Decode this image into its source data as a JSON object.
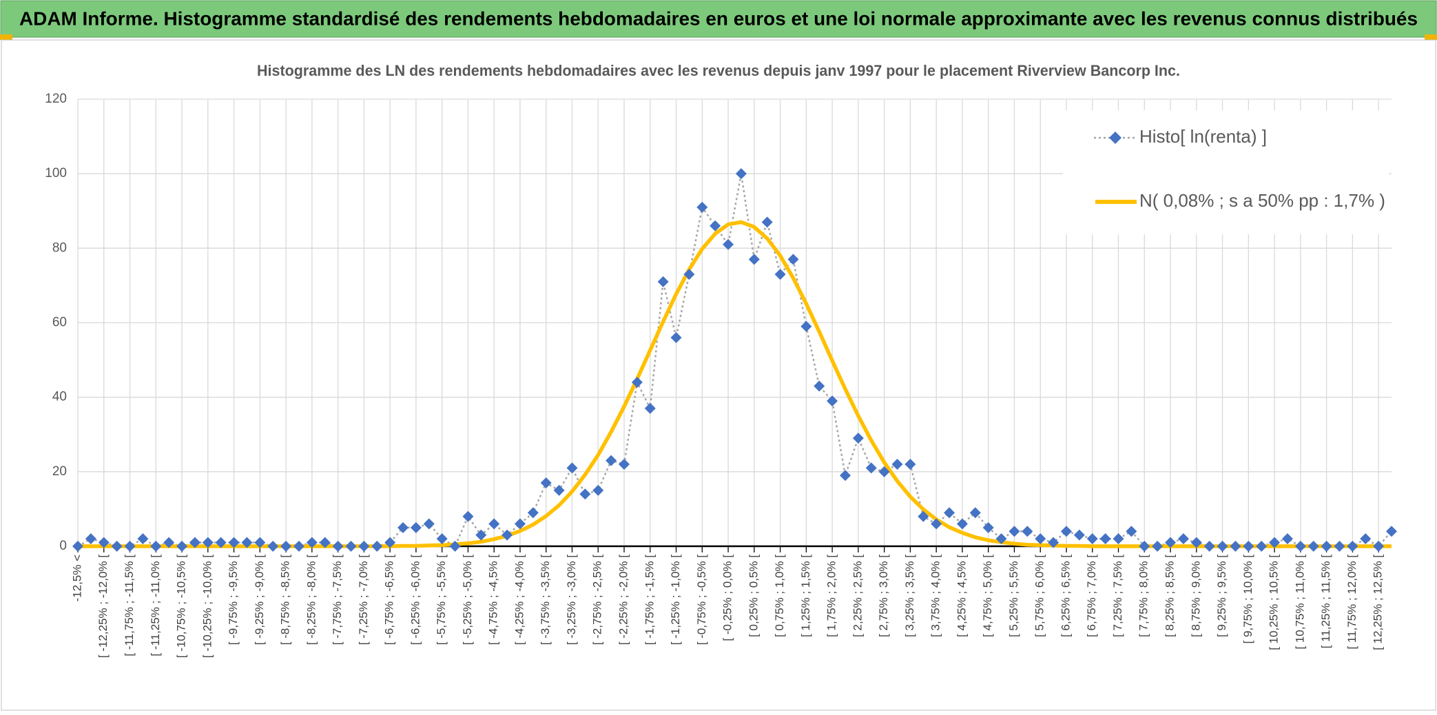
{
  "banner_title": "ADAM Informe. Histogramme standardisé des rendements hebdomadaires en euros et une loi normale approximante avec les revenus connus distribués",
  "chart_data": {
    "type": "line",
    "title": "Histogramme des LN des rendements hebdomadaires avec les revenus depuis janv 1997 pour le placement Riverview Bancorp Inc.",
    "categories": [
      "-12,5% <",
      null,
      "[ -12,25% ; -12,0% [",
      null,
      "[ -11,75% ; -11,5% [",
      null,
      "[ -11,25% ; -11,0% [",
      null,
      "[ -10,75% ; -10,5% [",
      null,
      "[ -10,25% ; -10,0% [",
      null,
      "[ -9,75% ; -9,5% [",
      null,
      "[ -9,25% ; -9,0% [",
      null,
      "[ -8,75% ; -8,5% [",
      null,
      "[ -8,25% ; -8,0% [",
      null,
      "[ -7,75% ; -7,5% [",
      null,
      "[ -7,25% ; -7,0% [",
      null,
      "[ -6,75% ; -6,5% [",
      null,
      "[ -6,25% ; -6,0% [",
      null,
      "[ -5,75% ; -5,5% [",
      null,
      "[ -5,25% ; -5,0% [",
      null,
      "[ -4,75% ; -4,5% [",
      null,
      "[ -4,25% ; -4,0% [",
      null,
      "[ -3,75% ; -3,5% [",
      null,
      "[ -3,25% ; -3,0% [",
      null,
      "[ -2,75% ; -2,5% [",
      null,
      "[ -2,25% ; -2,0% [",
      null,
      "[ -1,75% ; -1,5% [",
      null,
      "[ -1,25% ; -1,0% [",
      null,
      "[ -0,75% ; -0,5% [",
      null,
      "[ -0,25% ; 0,0% [",
      null,
      "[ 0,25% ; 0,5% [",
      null,
      "[ 0,75% ; 1,0% [",
      null,
      "[ 1,25% ; 1,5% [",
      null,
      "[ 1,75% ; 2,0% [",
      null,
      "[ 2,25% ; 2,5% [",
      null,
      "[ 2,75% ; 3,0% [",
      null,
      "[ 3,25% ; 3,5% [",
      null,
      "[ 3,75% ; 4,0% [",
      null,
      "[ 4,25% ; 4,5% [",
      null,
      "[ 4,75% ; 5,0% [",
      null,
      "[ 5,25% ; 5,5% [",
      null,
      "[ 5,75% ; 6,0% [",
      null,
      "[ 6,25% ; 6,5% [",
      null,
      "[ 6,75% ; 7,0% [",
      null,
      "[ 7,25% ; 7,5% [",
      null,
      "[ 7,75% ; 8,0% [",
      null,
      "[ 8,25% ; 8,5% [",
      null,
      "[ 8,75% ; 9,0% [",
      null,
      "[ 9,25% ; 9,5% [",
      null,
      "[ 9,75% ; 10,0% [",
      null,
      "[ 10,25% ; 10,5% [",
      null,
      "[ 10,75% ; 11,0% [",
      null,
      "[ 11,25% ; 11,5% [",
      null,
      "[ 11,75% ; 12,0% [",
      null,
      "[ 12,25% ; 12,5% [",
      null
    ],
    "series": [
      {
        "name": "Histo[ ln(renta) ]",
        "color": "#4472c4",
        "values": [
          0,
          2,
          1,
          0,
          0,
          2,
          0,
          1,
          0,
          1,
          1,
          1,
          1,
          1,
          1,
          0,
          0,
          0,
          1,
          1,
          0,
          0,
          0,
          0,
          1,
          5,
          5,
          6,
          2,
          0,
          8,
          3,
          6,
          3,
          6,
          9,
          17,
          15,
          21,
          14,
          15,
          23,
          22,
          44,
          37,
          71,
          56,
          73,
          91,
          86,
          81,
          100,
          77,
          87,
          73,
          77,
          59,
          43,
          39,
          19,
          29,
          21,
          20,
          22,
          22,
          8,
          6,
          9,
          6,
          9,
          5,
          2,
          4,
          4,
          2,
          1,
          4,
          3,
          2,
          2,
          2,
          4,
          0,
          0,
          1,
          2,
          1,
          0,
          0,
          0,
          0,
          0,
          1,
          2,
          0,
          0,
          0,
          0,
          0,
          2,
          0,
          4
        ]
      },
      {
        "name": "N( 0,08% ; s a 50% pp : 1,7% )",
        "color": "#ffc000",
        "values": [
          0,
          0,
          0,
          0,
          0,
          0,
          0,
          0,
          0,
          0,
          0,
          0,
          0,
          0,
          0,
          0,
          0,
          0,
          0,
          0,
          0,
          0,
          0,
          0,
          0,
          0.1,
          0.1,
          0.2,
          0.3,
          0.5,
          0.8,
          1.2,
          1.9,
          2.8,
          4.1,
          5.8,
          8.1,
          11.0,
          14.7,
          19.2,
          24.5,
          30.7,
          37.5,
          44.9,
          52.6,
          60.3,
          67.7,
          74.3,
          79.8,
          83.9,
          86.4,
          87.0,
          85.7,
          82.6,
          78.0,
          72.0,
          65.1,
          57.6,
          49.8,
          42.2,
          35.0,
          28.4,
          22.5,
          17.5,
          13.3,
          9.9,
          7.2,
          5.1,
          3.6,
          2.4,
          1.6,
          1.1,
          0.7,
          0.4,
          0.3,
          0.2,
          0.1,
          0.1,
          0,
          0,
          0,
          0,
          0,
          0,
          0,
          0,
          0,
          0,
          0,
          0,
          0,
          0,
          0,
          0,
          0,
          0,
          0,
          0,
          0,
          0,
          0,
          0
        ]
      }
    ],
    "ylim": [
      0,
      120
    ],
    "yticks": [
      0,
      20,
      40,
      60,
      80,
      100,
      120
    ],
    "grid": true,
    "legend": "upper right"
  }
}
